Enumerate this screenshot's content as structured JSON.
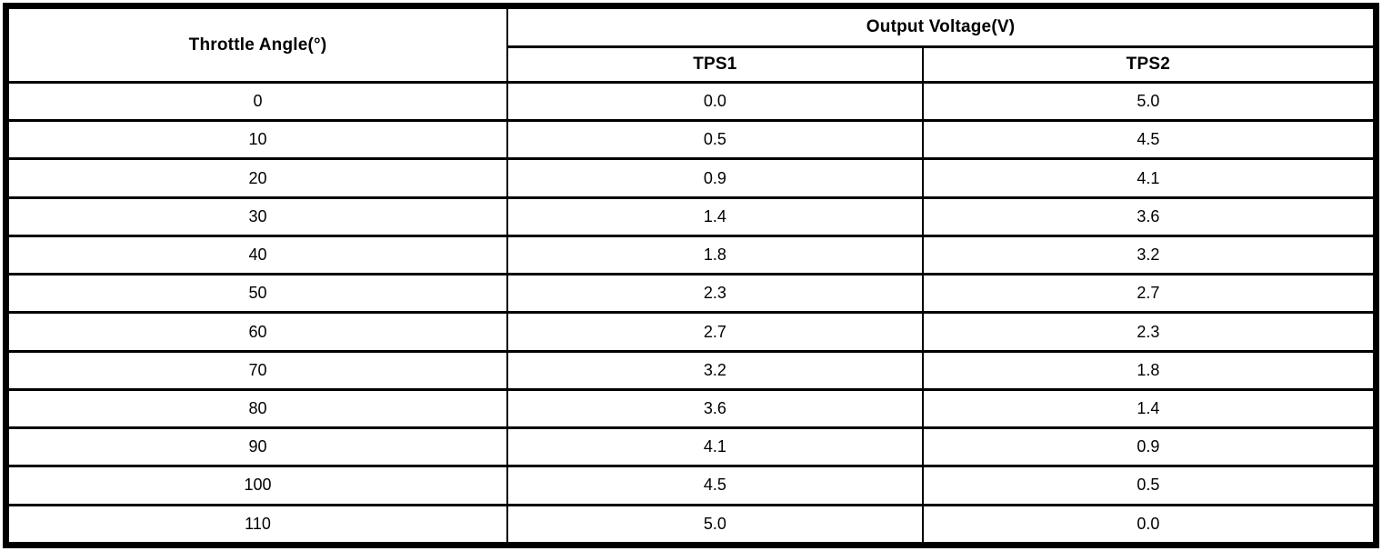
{
  "table": {
    "angle_header": "Throttle Angle(°)",
    "group_header": "Output Voltage(V)",
    "sub_headers": [
      "TPS1",
      "TPS2"
    ],
    "rows": [
      {
        "angle": "0",
        "tps1": "0.0",
        "tps2": "5.0"
      },
      {
        "angle": "10",
        "tps1": "0.5",
        "tps2": "4.5"
      },
      {
        "angle": "20",
        "tps1": "0.9",
        "tps2": "4.1"
      },
      {
        "angle": "30",
        "tps1": "1.4",
        "tps2": "3.6"
      },
      {
        "angle": "40",
        "tps1": "1.8",
        "tps2": "3.2"
      },
      {
        "angle": "50",
        "tps1": "2.3",
        "tps2": "2.7"
      },
      {
        "angle": "60",
        "tps1": "2.7",
        "tps2": "2.3"
      },
      {
        "angle": "70",
        "tps1": "3.2",
        "tps2": "1.8"
      },
      {
        "angle": "80",
        "tps1": "3.6",
        "tps2": "1.4"
      },
      {
        "angle": "90",
        "tps1": "4.1",
        "tps2": "0.9"
      },
      {
        "angle": "100",
        "tps1": "4.5",
        "tps2": "0.5"
      },
      {
        "angle": "110",
        "tps1": "5.0",
        "tps2": "0.0"
      }
    ],
    "border_color": "#000000",
    "background_color": "#ffffff"
  }
}
